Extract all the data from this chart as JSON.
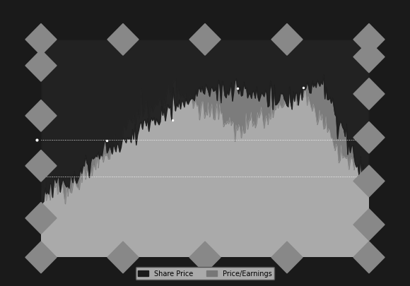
{
  "bg_color": "#1a1a1a",
  "plot_bg_color": "#aaaaaa",
  "fig_width": 5.8,
  "fig_height": 4.06,
  "dpi": 100,
  "legend_label_price": "Share Price",
  "legend_label_pe": "Price/Earnings",
  "share_color": "#1a1a1a",
  "pe_color": "#777777",
  "diamond_color": "#888888",
  "seed": 17
}
